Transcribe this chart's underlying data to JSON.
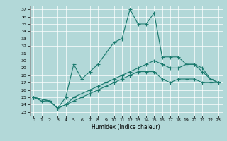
{
  "xlabel": "Humidex (Indice chaleur)",
  "ylabel": "",
  "background_color": "#b2d8d8",
  "grid_color": "#d0e8e8",
  "line_color": "#1a7a6e",
  "xlim": [
    -0.5,
    23.5
  ],
  "ylim": [
    22.5,
    37.5
  ],
  "yticks": [
    23,
    24,
    25,
    26,
    27,
    28,
    29,
    30,
    31,
    32,
    33,
    34,
    35,
    36,
    37
  ],
  "xticks": [
    0,
    1,
    2,
    3,
    4,
    5,
    6,
    7,
    8,
    9,
    10,
    11,
    12,
    13,
    14,
    15,
    16,
    17,
    18,
    19,
    20,
    21,
    22,
    23
  ],
  "line1_x": [
    0,
    1,
    2,
    3,
    4,
    5,
    6,
    7,
    8,
    9,
    10,
    11,
    12,
    13,
    14,
    15,
    16,
    17,
    18,
    19,
    20,
    21,
    22,
    23
  ],
  "line1_y": [
    25.0,
    24.5,
    24.5,
    23.5,
    25.0,
    29.5,
    27.5,
    28.5,
    29.5,
    31.0,
    32.5,
    33.0,
    37.0,
    35.0,
    35.0,
    36.5,
    30.5,
    30.5,
    30.5,
    29.5,
    29.5,
    28.5,
    27.5,
    27.0
  ],
  "line2_x": [
    0,
    2,
    3,
    4,
    5,
    6,
    7,
    8,
    9,
    10,
    11,
    12,
    13,
    14,
    15,
    16,
    17,
    18,
    19,
    20,
    21,
    22,
    23
  ],
  "line2_y": [
    25.0,
    24.5,
    23.5,
    24.0,
    25.0,
    25.5,
    26.0,
    26.5,
    27.0,
    27.5,
    28.0,
    28.5,
    29.0,
    29.5,
    30.0,
    29.5,
    29.0,
    29.0,
    29.5,
    29.5,
    29.0,
    27.5,
    27.0
  ],
  "line3_x": [
    0,
    2,
    3,
    4,
    5,
    6,
    7,
    8,
    9,
    10,
    11,
    12,
    13,
    14,
    15,
    16,
    17,
    18,
    19,
    20,
    21,
    22,
    23
  ],
  "line3_y": [
    25.0,
    24.5,
    23.5,
    24.0,
    24.5,
    25.0,
    25.5,
    26.0,
    26.5,
    27.0,
    27.5,
    28.0,
    28.5,
    28.5,
    28.5,
    27.5,
    27.0,
    27.5,
    27.5,
    27.5,
    27.0,
    27.0,
    27.0
  ]
}
